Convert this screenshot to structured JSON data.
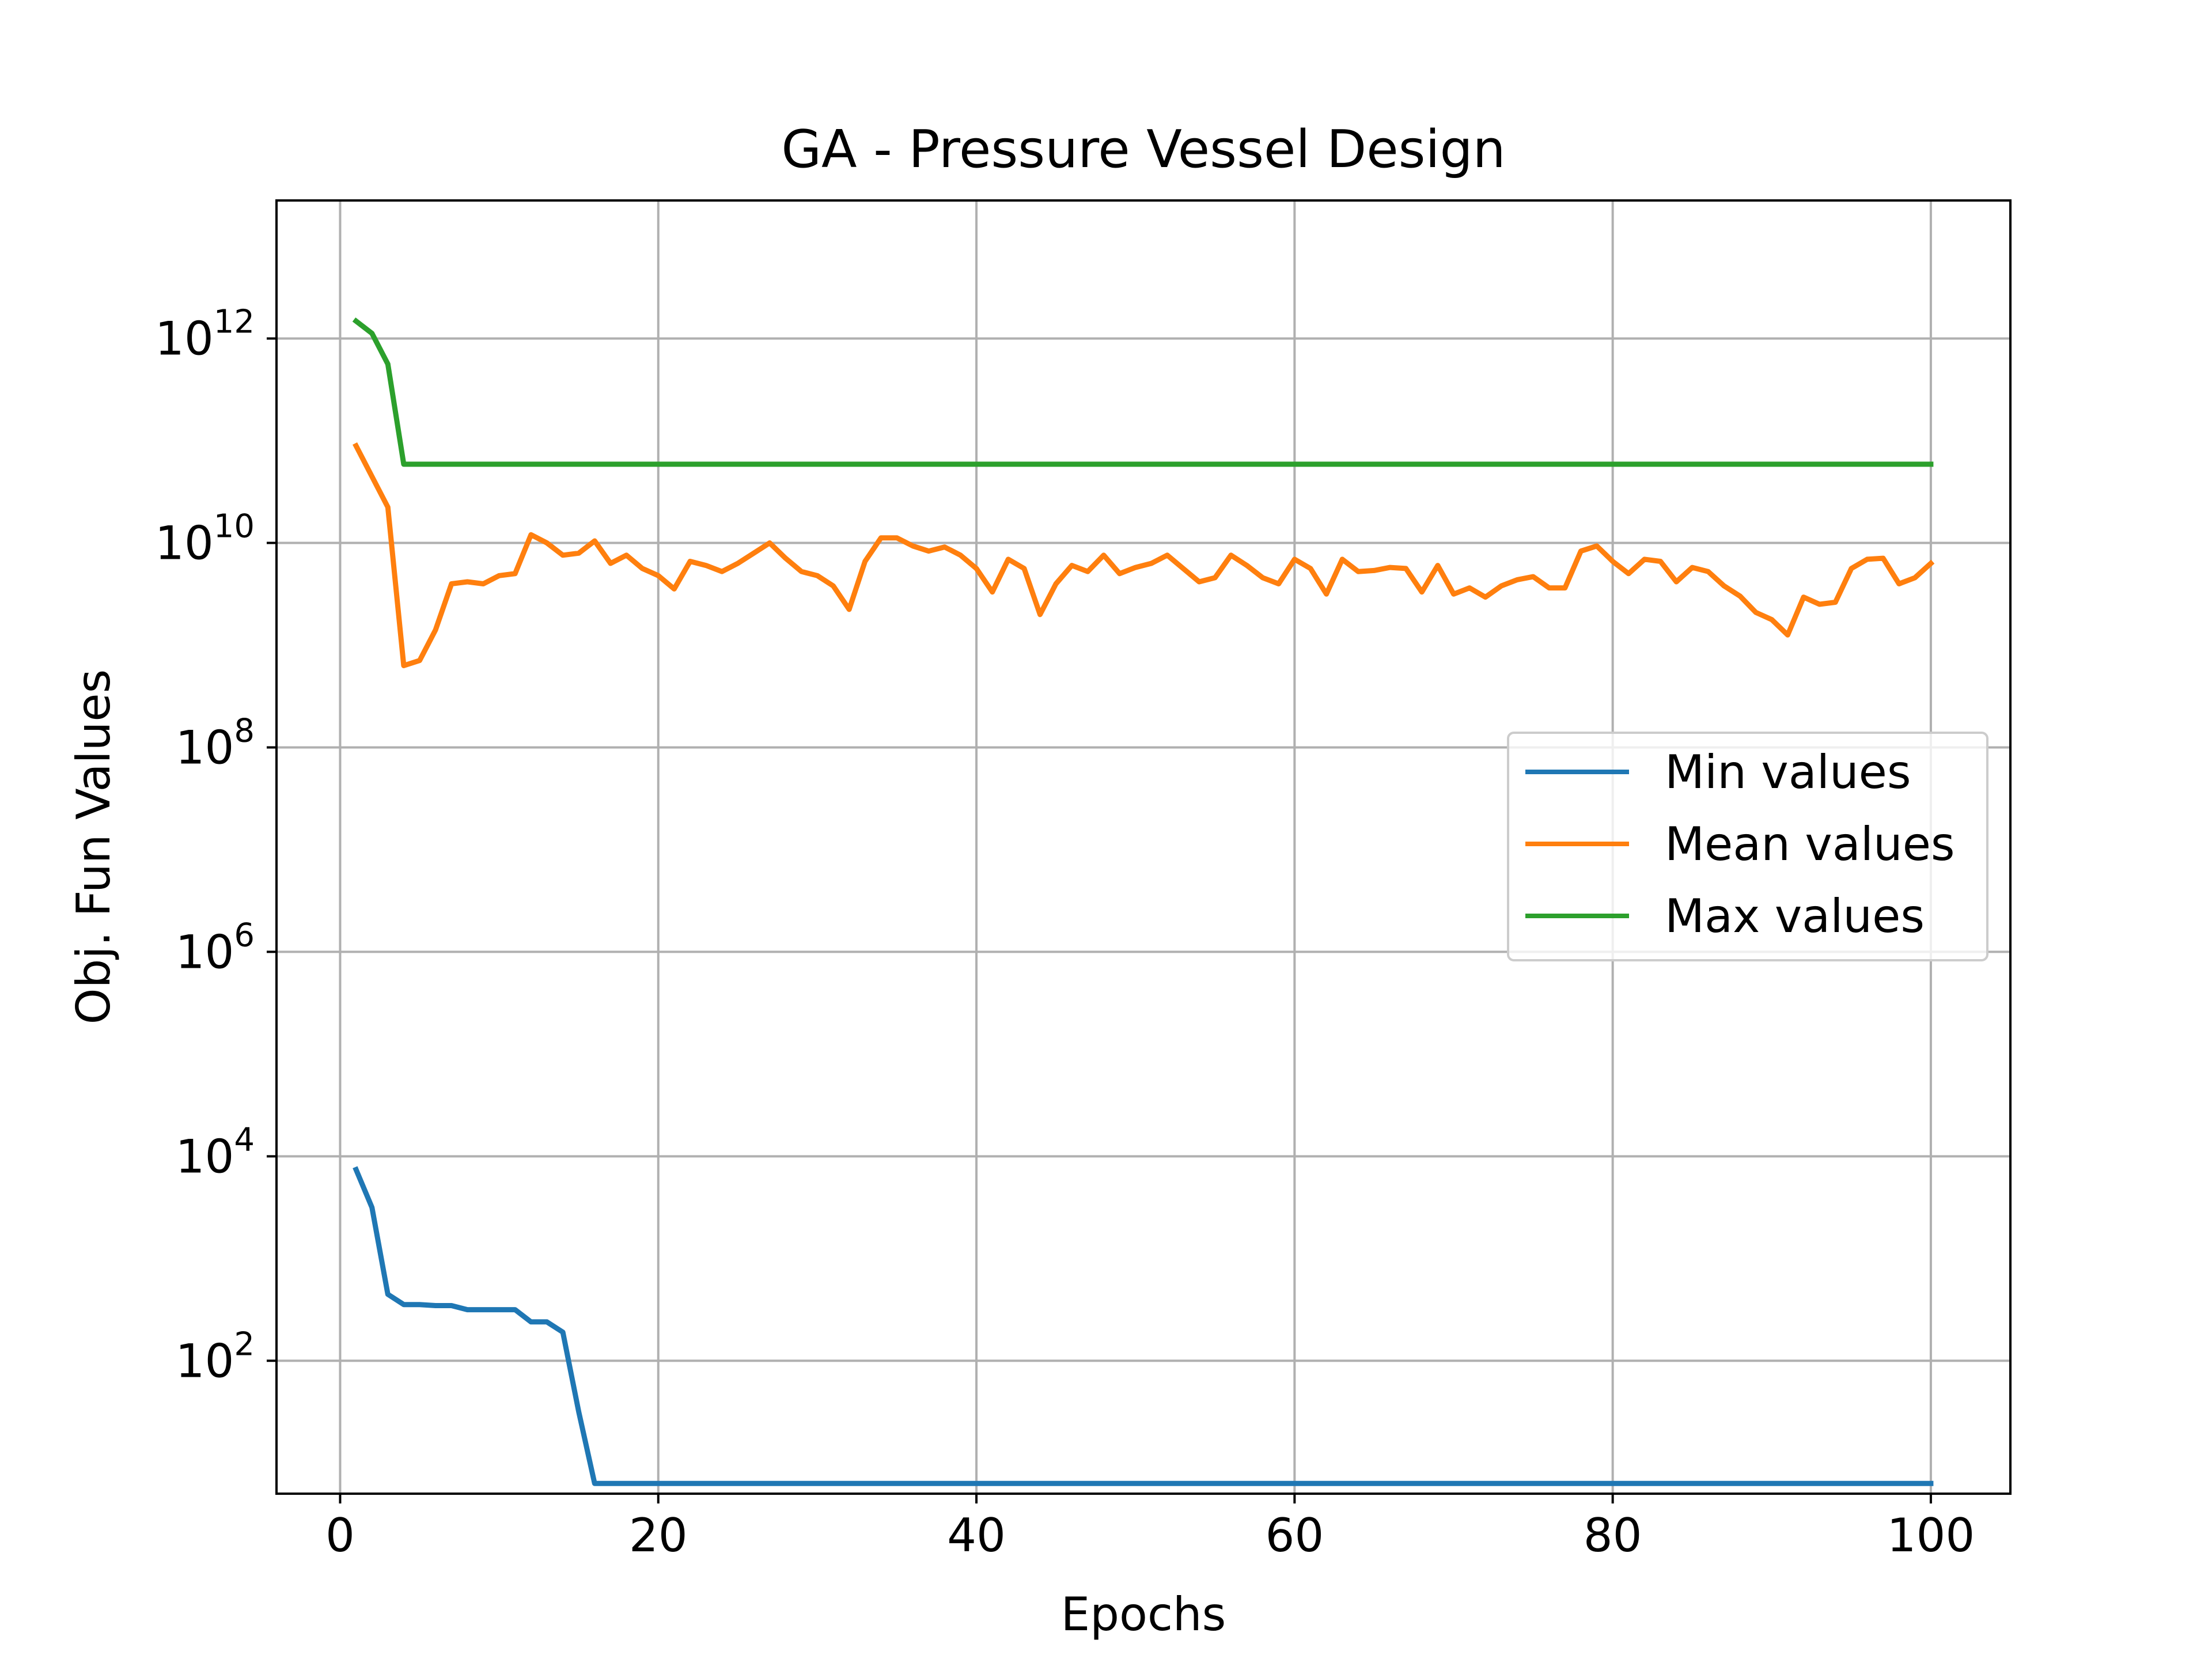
{
  "chart_data": {
    "type": "line",
    "title": "GA - Pressure Vessel Design",
    "xlabel": "Epochs",
    "ylabel": "Obj. Fun Values",
    "xlim": [
      -4,
      105
    ],
    "ylim_log10": [
      0.7,
      13.35
    ],
    "yscale": "log",
    "grid": true,
    "legend_position": "center-right",
    "x_ticks": [
      0,
      20,
      40,
      60,
      80,
      100
    ],
    "x_tick_labels": [
      "0",
      "20",
      "40",
      "60",
      "80",
      "100"
    ],
    "y_ticks_log10": [
      2,
      4,
      6,
      8,
      10,
      12
    ],
    "y_tick_labels": [
      {
        "base": "10",
        "exp": "2"
      },
      {
        "base": "10",
        "exp": "4"
      },
      {
        "base": "10",
        "exp": "6"
      },
      {
        "base": "10",
        "exp": "8"
      },
      {
        "base": "10",
        "exp": "10"
      },
      {
        "base": "10",
        "exp": "12"
      }
    ],
    "series": [
      {
        "name": "Min values",
        "color": "#1f77b4",
        "x": [
          1,
          2,
          3,
          4,
          5,
          6,
          7,
          8,
          9,
          10,
          11,
          12,
          13,
          14,
          15,
          16,
          100
        ],
        "log10_y": [
          3.87,
          3.5,
          2.65,
          2.55,
          2.55,
          2.54,
          2.54,
          2.5,
          2.5,
          2.5,
          2.5,
          2.38,
          2.38,
          2.28,
          1.5,
          0.8,
          0.8
        ]
      },
      {
        "name": "Mean values",
        "color": "#ff7f0e",
        "x": [
          1,
          2,
          3,
          4,
          5,
          6,
          7,
          8,
          9,
          10,
          11,
          12,
          13,
          14,
          15,
          16,
          17,
          18,
          19,
          20,
          21,
          22,
          23,
          24,
          25,
          26,
          27,
          28,
          29,
          30,
          31,
          32,
          33,
          34,
          35,
          36,
          37,
          38,
          39,
          40,
          41,
          42,
          43,
          44,
          45,
          46,
          47,
          48,
          49,
          50,
          51,
          52,
          53,
          54,
          55,
          56,
          57,
          58,
          59,
          60,
          61,
          62,
          63,
          64,
          65,
          66,
          67,
          68,
          69,
          70,
          71,
          72,
          73,
          74,
          75,
          76,
          77,
          78,
          79,
          80,
          81,
          82,
          83,
          84,
          85,
          86,
          87,
          88,
          89,
          90,
          91,
          92,
          93,
          94,
          95,
          96,
          97,
          98,
          99,
          100
        ],
        "log10_y": [
          10.95,
          10.65,
          10.35,
          8.8,
          8.85,
          9.15,
          9.6,
          9.62,
          9.6,
          9.68,
          9.7,
          10.08,
          10.0,
          9.88,
          9.9,
          10.02,
          9.8,
          9.88,
          9.75,
          9.68,
          9.55,
          9.82,
          9.78,
          9.72,
          9.8,
          9.9,
          10.0,
          9.85,
          9.72,
          9.68,
          9.58,
          9.35,
          9.82,
          10.05,
          10.05,
          9.97,
          9.92,
          9.96,
          9.88,
          9.75,
          9.52,
          9.84,
          9.75,
          9.3,
          9.6,
          9.78,
          9.72,
          9.88,
          9.7,
          9.76,
          9.8,
          9.88,
          9.75,
          9.62,
          9.66,
          9.88,
          9.78,
          9.66,
          9.6,
          9.84,
          9.75,
          9.5,
          9.84,
          9.72,
          9.73,
          9.76,
          9.75,
          9.52,
          9.78,
          9.5,
          9.56,
          9.47,
          9.58,
          9.64,
          9.67,
          9.56,
          9.56,
          9.92,
          9.97,
          9.82,
          9.7,
          9.84,
          9.82,
          9.62,
          9.76,
          9.72,
          9.58,
          9.48,
          9.32,
          9.25,
          9.1,
          9.47,
          9.4,
          9.42,
          9.75,
          9.84,
          9.85,
          9.6,
          9.66,
          9.8
        ]
      },
      {
        "name": "Max values",
        "color": "#2ca02c",
        "x": [
          1,
          2,
          3,
          4,
          100
        ],
        "log10_y": [
          12.17,
          12.05,
          11.75,
          10.77,
          10.77
        ]
      }
    ]
  }
}
